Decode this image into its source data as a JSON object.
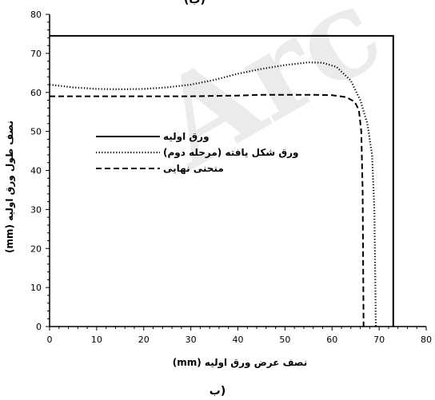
{
  "chart_data": {
    "type": "line",
    "xlabel": "نصف عرض ورق اولیه (mm)",
    "ylabel": "نصف طول ورق اولیه (mm)",
    "xlim": [
      0,
      80
    ],
    "ylim": [
      0,
      80
    ],
    "xticks": [
      0,
      10,
      20,
      30,
      40,
      50,
      60,
      70,
      80
    ],
    "yticks": [
      0,
      10,
      20,
      30,
      40,
      50,
      60,
      70,
      80
    ],
    "grid": false,
    "legend_position": "left-center",
    "caption": "ب)",
    "top_caption_fragment": "(ب)",
    "watermark": "Arc",
    "series": [
      {
        "name": "ورق اولیه",
        "style": "solid",
        "color": "#000000",
        "x": [
          0,
          73,
          73
        ],
        "y": [
          74.5,
          74.5,
          0
        ]
      },
      {
        "name": "ورق شکل یافته (مرحله دوم)",
        "style": "dotted",
        "color": "#000000",
        "x": [
          0,
          5,
          10,
          15,
          20,
          25,
          30,
          35,
          40,
          45,
          50,
          55,
          58,
          61,
          64,
          66,
          67.5,
          68.5,
          69,
          69.3
        ],
        "y": [
          62,
          61.3,
          60.9,
          60.8,
          60.9,
          61.3,
          62,
          63.2,
          64.8,
          66,
          67,
          67.7,
          67.6,
          66.5,
          63,
          58,
          52,
          44,
          30,
          0
        ]
      },
      {
        "name": "منحنی نهایی",
        "style": "dashed",
        "color": "#000000",
        "x": [
          0,
          10,
          20,
          30,
          40,
          45,
          50,
          55,
          60,
          63,
          64.8,
          65.7,
          66.2,
          66.5,
          66.7
        ],
        "y": [
          59,
          59,
          59,
          59,
          59.2,
          59.4,
          59.4,
          59.4,
          59.3,
          58.8,
          57.6,
          55.5,
          50,
          35,
          0
        ]
      }
    ]
  }
}
